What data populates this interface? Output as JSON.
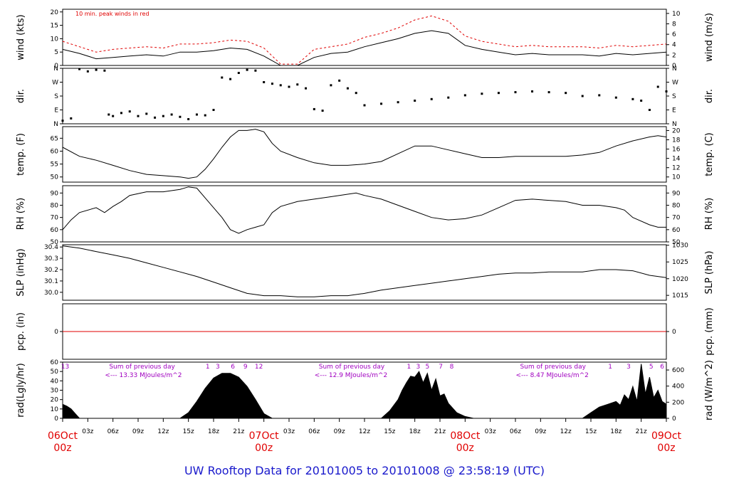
{
  "footer_title": "UW Rooftop Data for 20101005  to  20101008 @ 23:58:19  (UTC)",
  "wind_note": "10 min. peak winds in red",
  "colors": {
    "peak": "#e00000",
    "pcp_line": "#e00000",
    "rad_annotation": "#a000c0",
    "footer": "#1a1acc",
    "day_label": "#e00000"
  },
  "days": [
    {
      "label": "06Oct",
      "sub": "00z",
      "hour": 0
    },
    {
      "label": "07Oct",
      "sub": "00z",
      "hour": 24
    },
    {
      "label": "08Oct",
      "sub": "00z",
      "hour": 48
    },
    {
      "label": "09Oct",
      "sub": "00z",
      "hour": 72
    }
  ],
  "hour_labels": [
    "03z",
    "06z",
    "09z",
    "12z",
    "15z",
    "18z",
    "21z"
  ],
  "chart_data": [
    {
      "name": "wind",
      "type": "line",
      "left_label": "wind (kts)",
      "right_label": "wind (m/s)",
      "ylim": [
        0,
        21
      ],
      "left_ticks": [
        0,
        5,
        10,
        15,
        20
      ],
      "right_ticks": [
        "0",
        "2",
        "4",
        "6",
        "8",
        "10"
      ],
      "right_tick_values": [
        0,
        3.888,
        7.776,
        11.664,
        15.552,
        19.44
      ],
      "x_hours": [
        0,
        2,
        4,
        6,
        8,
        10,
        12,
        14,
        16,
        18,
        20,
        22,
        24,
        26,
        27,
        28,
        30,
        32,
        34,
        36,
        38,
        40,
        42,
        44,
        46,
        48,
        50,
        52,
        54,
        56,
        58,
        60,
        62,
        64,
        66,
        68,
        70,
        72
      ],
      "series": [
        {
          "role": "mean",
          "values": [
            6,
            4.5,
            2.5,
            3,
            3.5,
            4,
            3.5,
            5,
            5,
            5.5,
            6.5,
            6,
            3.5,
            0,
            0,
            0,
            3,
            4.5,
            5,
            7,
            8.5,
            10,
            12,
            13,
            12,
            7.5,
            6,
            5,
            4,
            4.5,
            4,
            4,
            4,
            3.5,
            4.5,
            4,
            4.5,
            5
          ]
        },
        {
          "role": "peak",
          "values": [
            9,
            7,
            5,
            6,
            6.5,
            7,
            6.5,
            8,
            8,
            8.5,
            9.5,
            9,
            6.5,
            0.5,
            0.5,
            0.5,
            6,
            7,
            8,
            10.5,
            12,
            14,
            17,
            18.5,
            16.5,
            11,
            9,
            8,
            7,
            7.5,
            7,
            7,
            7,
            6.5,
            7.5,
            7,
            7.5,
            8
          ]
        }
      ]
    },
    {
      "name": "dir",
      "type": "scatter",
      "left_label": "dir.",
      "right_label": "dir.",
      "ylim": [
        0,
        360
      ],
      "ticks": [
        {
          "v": 0,
          "t": "N"
        },
        {
          "v": 90,
          "t": "E"
        },
        {
          "v": 180,
          "t": "S"
        },
        {
          "v": 270,
          "t": "W"
        },
        {
          "v": 360,
          "t": "N"
        }
      ],
      "x_hours": [
        0,
        1,
        2,
        3,
        4,
        5,
        5.5,
        6,
        7,
        8,
        9,
        10,
        11,
        12,
        13,
        14,
        15,
        16,
        17,
        18,
        19,
        20,
        21,
        22,
        23,
        24,
        25,
        26,
        27,
        28,
        29,
        30,
        31,
        32,
        33,
        34,
        35,
        36,
        38,
        40,
        42,
        44,
        46,
        48,
        50,
        52,
        54,
        56,
        58,
        60,
        62,
        64,
        66,
        68,
        69,
        70,
        71,
        72
      ],
      "values": [
        20,
        35,
        355,
        340,
        350,
        345,
        60,
        50,
        70,
        80,
        50,
        65,
        40,
        50,
        60,
        45,
        30,
        60,
        55,
        90,
        300,
        290,
        330,
        350,
        345,
        270,
        260,
        250,
        240,
        255,
        230,
        95,
        85,
        250,
        280,
        230,
        200,
        120,
        130,
        140,
        150,
        160,
        170,
        185,
        195,
        200,
        205,
        210,
        205,
        200,
        180,
        185,
        170,
        160,
        150,
        90,
        240,
        210
      ]
    },
    {
      "name": "temp",
      "type": "line",
      "left_label": "temp. (F)",
      "right_label": "temp. (C)",
      "ylim": [
        48,
        69.5
      ],
      "left_ticks": [
        50,
        55,
        60,
        65
      ],
      "right_ticks": [
        "10",
        "12",
        "14",
        "16",
        "18",
        "20"
      ],
      "right_tick_values": [
        50,
        53.6,
        57.2,
        60.8,
        64.4,
        68
      ],
      "x_hours": [
        0,
        2,
        4,
        6,
        8,
        10,
        12,
        14,
        15,
        16,
        17,
        18,
        19,
        20,
        21,
        22,
        23,
        24,
        25,
        26,
        28,
        30,
        32,
        34,
        36,
        38,
        40,
        42,
        44,
        46,
        48,
        50,
        52,
        54,
        56,
        58,
        60,
        62,
        64,
        66,
        68,
        70,
        71,
        72
      ],
      "values": [
        61.5,
        58,
        56.5,
        54.5,
        52.5,
        51,
        50.5,
        50,
        49.5,
        50,
        53,
        57,
        61.5,
        65.5,
        68,
        68,
        68.5,
        67.5,
        63,
        60,
        57.5,
        55.5,
        54.5,
        54.5,
        55,
        56,
        59,
        62,
        62,
        60.5,
        59,
        57.5,
        57.5,
        58,
        58,
        58,
        58,
        58.5,
        59.5,
        62,
        64,
        65.5,
        66,
        65.5
      ]
    },
    {
      "name": "rh",
      "type": "line",
      "left_label": "RH (%)",
      "right_label": "RH (%)",
      "ylim": [
        50,
        96
      ],
      "left_ticks": [
        50,
        60,
        70,
        80,
        90
      ],
      "right_ticks": [
        "50",
        "60",
        "70",
        "80",
        "90"
      ],
      "right_tick_values": [
        50,
        60,
        70,
        80,
        90
      ],
      "x_hours": [
        0,
        1,
        2,
        4,
        5,
        6,
        7,
        8,
        10,
        12,
        14,
        15,
        16,
        17,
        18,
        19,
        20,
        21,
        22,
        23,
        24,
        25,
        26,
        28,
        30,
        32,
        34,
        35,
        36,
        38,
        40,
        42,
        44,
        46,
        48,
        50,
        52,
        54,
        56,
        58,
        60,
        62,
        64,
        66,
        67,
        68,
        70,
        71,
        72
      ],
      "values": [
        60,
        68,
        74,
        78,
        74,
        79,
        83,
        88,
        91,
        91,
        93,
        95,
        94,
        86,
        78,
        70,
        60,
        57,
        60,
        62,
        64,
        74,
        79,
        83,
        85,
        87,
        89,
        90,
        88,
        85,
        80,
        75,
        70,
        68,
        69,
        72,
        78,
        84,
        85,
        84,
        83,
        80,
        80,
        78,
        76,
        70,
        64,
        62,
        62
      ]
    },
    {
      "name": "slp",
      "type": "line",
      "left_label": "SLP (inHg)",
      "right_label": "SLP (hPa)",
      "ylim": [
        29.93,
        30.42
      ],
      "left_ticks": [
        30.0,
        30.1,
        30.2,
        30.3,
        30.4
      ],
      "left_tick_labels": [
        "30.0",
        "30.1",
        "30.2",
        "30.3",
        "30.4"
      ],
      "right_ticks": [
        "1015",
        "1020",
        "1025",
        "1030"
      ],
      "right_tick_values": [
        29.973,
        30.12,
        30.268,
        30.416
      ],
      "x_hours": [
        0,
        2,
        4,
        6,
        8,
        10,
        12,
        14,
        16,
        18,
        20,
        22,
        24,
        26,
        28,
        30,
        32,
        34,
        36,
        38,
        40,
        42,
        44,
        46,
        48,
        50,
        52,
        54,
        56,
        58,
        60,
        62,
        64,
        66,
        68,
        70,
        72
      ],
      "values": [
        30.41,
        30.39,
        30.36,
        30.33,
        30.3,
        30.26,
        30.22,
        30.18,
        30.14,
        30.09,
        30.04,
        29.99,
        29.97,
        29.97,
        29.96,
        29.96,
        29.97,
        29.97,
        29.99,
        30.02,
        30.04,
        30.06,
        30.08,
        30.1,
        30.12,
        30.14,
        30.16,
        30.17,
        30.17,
        30.18,
        30.18,
        30.18,
        30.2,
        30.2,
        30.19,
        30.15,
        30.13
      ]
    },
    {
      "name": "pcp",
      "type": "line",
      "left_label": "pcp. (in)",
      "right_label": "pcp. (mm)",
      "ylim": [
        -1,
        1
      ],
      "left_ticks": [
        0
      ],
      "right_ticks": [
        "0"
      ],
      "right_tick_values": [
        0
      ],
      "x_hours": [
        0,
        72
      ],
      "values": [
        0,
        0
      ]
    },
    {
      "name": "rad",
      "type": "area",
      "left_label": "rad(Lgly/hr)",
      "right_label": "rad (W/m^2)",
      "ylim": [
        0,
        60
      ],
      "left_ticks": [
        0,
        10,
        20,
        30,
        40,
        50,
        60
      ],
      "right_ticks": [
        "0",
        "200",
        "400",
        "600"
      ],
      "right_tick_values": [
        0,
        17.2,
        34.4,
        51.6
      ],
      "x_hours": [
        0,
        0.5,
        1,
        1.5,
        2,
        14,
        15,
        16,
        17,
        18,
        19,
        20,
        21,
        22,
        23,
        24,
        25,
        38,
        39,
        40,
        40.5,
        41,
        41.5,
        42,
        42.5,
        43,
        43.5,
        44,
        44.5,
        45,
        45.5,
        46,
        47,
        48,
        49,
        62,
        63,
        64,
        65,
        66,
        66.5,
        67,
        67.5,
        68,
        68.5,
        69,
        69.5,
        70,
        70.5,
        71,
        71.5,
        72
      ],
      "values": [
        15,
        13,
        10,
        5,
        0,
        0,
        6,
        18,
        32,
        43,
        48,
        48,
        44,
        34,
        20,
        5,
        0,
        0,
        8,
        20,
        30,
        38,
        45,
        44,
        50,
        38,
        48,
        30,
        42,
        24,
        26,
        16,
        6,
        2,
        0,
        0,
        6,
        12,
        15,
        18,
        14,
        25,
        20,
        34,
        18,
        58,
        26,
        44,
        22,
        30,
        18,
        15
      ],
      "annotations": [
        {
          "text": "Sum of previous day",
          "sub": "<--- 13.33 MJoules/m^2",
          "hour": 3
        },
        {
          "text": "Sum of previous day",
          "sub": "<--- 12.9 MJoules/m^2",
          "hour": 28
        },
        {
          "text": "Sum of previous day",
          "sub": "<--- 8.47 MJoules/m^2",
          "hour": 52
        }
      ],
      "hour_marks": [
        {
          "text": "13",
          "hour": 0.3
        },
        {
          "text": "1",
          "hour": 17.3
        },
        {
          "text": "3",
          "hour": 18.5
        },
        {
          "text": "6",
          "hour": 20.3
        },
        {
          "text": "9",
          "hour": 21.8
        },
        {
          "text": "12",
          "hour": 23.4
        },
        {
          "text": "1",
          "hour": 41.3
        },
        {
          "text": "3",
          "hour": 42.4
        },
        {
          "text": "5",
          "hour": 43.5
        },
        {
          "text": "7",
          "hour": 45.1
        },
        {
          "text": "8",
          "hour": 46.4
        },
        {
          "text": "1",
          "hour": 65.3
        },
        {
          "text": "3",
          "hour": 67.5
        },
        {
          "text": "5",
          "hour": 70.2
        },
        {
          "text": "6",
          "hour": 71.5
        }
      ]
    }
  ]
}
